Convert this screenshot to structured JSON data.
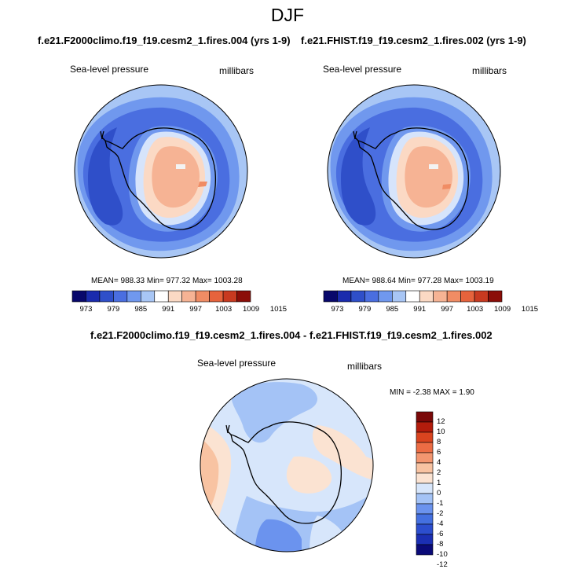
{
  "figure_title": "DJF",
  "panels": {
    "left": {
      "title": "f.e21.F2000climo.f19_f19.cesm2_1.fires.004 (yrs 1-9)",
      "variable": "Sea-level pressure",
      "units": "millibars",
      "stats": "MEAN= 988.33  Min= 977.32  Max= 1003.28"
    },
    "right": {
      "title": "f.e21.FHIST.f19_f19.cesm2_1.fires.002 (yrs 1-9)",
      "variable": "Sea-level pressure",
      "units": "millibars",
      "stats": "MEAN= 988.64  Min= 977.28  Max= 1003.19"
    },
    "diff": {
      "title": "f.e21.F2000climo.f19_f19.cesm2_1.fires.004 - f.e21.FHIST.f19_f19.cesm2_1.fires.002",
      "variable": "Sea-level pressure",
      "units": "millibars",
      "stats": "MIN =  -2.38 MAX =   1.90"
    }
  },
  "colors": {
    "abs_colorbar": [
      "#08086b",
      "#1a2bad",
      "#2f4fc9",
      "#4a6ee0",
      "#7098ee",
      "#a8c6f5",
      "#ffffff",
      "#fbd9c4",
      "#f6b394",
      "#f08c64",
      "#e6633c",
      "#c83a20",
      "#8b0e08"
    ],
    "diff_colorbar": [
      "#0a0a78",
      "#1b2fb3",
      "#2c4ece",
      "#4470e0",
      "#6b93ee",
      "#a4c3f6",
      "#d7e6fb",
      "#fbe3d2",
      "#f8c3a2",
      "#f39670",
      "#ec6c44",
      "#d9441f",
      "#b31c0c",
      "#7a0808"
    ]
  },
  "chart_data": [
    {
      "type": "heatmap",
      "projection": "south-polar-stereographic",
      "title": "f.e21.F2000climo.f19_f19.cesm2_1.fires.004 (yrs 1-9)",
      "variable": "Sea-level pressure",
      "units": "millibars",
      "mean": 988.33,
      "min": 977.32,
      "max": 1003.28,
      "colorbar_levels": [
        973,
        976,
        979,
        982,
        985,
        988,
        991,
        994,
        997,
        1000,
        1003,
        1006,
        1009,
        1012,
        1015
      ],
      "colorbar_tick_labels": [
        "973",
        "979",
        "985",
        "991",
        "997",
        "1003",
        "1009",
        "1015"
      ]
    },
    {
      "type": "heatmap",
      "projection": "south-polar-stereographic",
      "title": "f.e21.FHIST.f19_f19.cesm2_1.fires.002 (yrs 1-9)",
      "variable": "Sea-level pressure",
      "units": "millibars",
      "mean": 988.64,
      "min": 977.28,
      "max": 1003.19,
      "colorbar_levels": [
        973,
        976,
        979,
        982,
        985,
        988,
        991,
        994,
        997,
        1000,
        1003,
        1006,
        1009,
        1012,
        1015
      ],
      "colorbar_tick_labels": [
        "973",
        "979",
        "985",
        "991",
        "997",
        "1003",
        "1009",
        "1015"
      ]
    },
    {
      "type": "heatmap",
      "projection": "south-polar-stereographic",
      "title": "f.e21.F2000climo.f19_f19.cesm2_1.fires.004 - f.e21.FHIST.f19_f19.cesm2_1.fires.002",
      "variable": "Sea-level pressure",
      "units": "millibars",
      "min": -2.38,
      "max": 1.9,
      "colorbar_levels": [
        -12,
        -10,
        -8,
        -6,
        -4,
        -2,
        -1,
        0,
        1,
        2,
        4,
        6,
        8,
        10,
        12
      ],
      "colorbar_tick_labels": [
        "12",
        "10",
        "8",
        "6",
        "4",
        "2",
        "1",
        "0",
        "-1",
        "-2",
        "-4",
        "-6",
        "-8",
        "-10",
        "-12"
      ]
    }
  ]
}
